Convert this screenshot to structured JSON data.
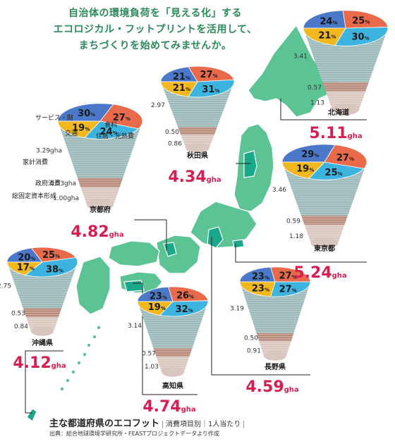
{
  "headline": [
    "自治体の環境負荷を「見える化」する",
    "エコロジカル・フットプリントを活用して、",
    "まちづくりを始めてみませんか。"
  ],
  "colors": {
    "service": "#4b78c8",
    "food": "#e86a4a",
    "transport": "#f2b81e",
    "housing": "#3db4e0",
    "household_band": "#9ab8b8",
    "government_band": "#b88a7a",
    "capital_band": "#d9c6bf",
    "map_green": "#5cc394",
    "map_highlight": "#1aa88a",
    "total_red": "#d81e50"
  },
  "legend": {
    "service": "サービス・財",
    "food": "食料",
    "transport": "交通",
    "housing": "住居・光熱費",
    "household": "家計消費",
    "government": "政府消費",
    "capital": "総固定資本形成"
  },
  "units": {
    "percent": "%",
    "gha": "gha"
  },
  "footer": {
    "title": "主な都道府県のエコフット",
    "subtitle": "消費項目別｜1人当たり",
    "source": "出典：総合地球環境学研究所・FEASTプロジェクトデータより作成"
  },
  "chart_data": {
    "type": "pie",
    "title": "主な都道府県のエコフット",
    "series_order": [
      "service",
      "food",
      "transport",
      "housing"
    ],
    "prefectures": [
      {
        "name": "北海道",
        "total": "5.11",
        "shares": {
          "service": 24,
          "food": 25,
          "transport": 21,
          "housing": 30
        },
        "household": "3.41",
        "government": "0.57",
        "capital": "1.13"
      },
      {
        "name": "秋田県",
        "total": "4.34",
        "shares": {
          "service": 21,
          "food": 27,
          "transport": 21,
          "housing": 31
        },
        "household": "2.97",
        "government": "0.50",
        "capital": "0.86"
      },
      {
        "name": "京都府",
        "total": "4.82",
        "shares": {
          "service": 30,
          "food": 27,
          "transport": 19,
          "housing": 24
        },
        "household": "3.29gha",
        "government": "0.53gha",
        "capital": "1.00gha"
      },
      {
        "name": "東京都",
        "total": "5.24",
        "shares": {
          "service": 29,
          "food": 27,
          "transport": 19,
          "housing": 25
        },
        "household": "3.46",
        "government": "0.59",
        "capital": "1.18"
      },
      {
        "name": "沖縄県",
        "total": "4.12",
        "shares": {
          "service": 20,
          "food": 25,
          "transport": 17,
          "housing": 38
        },
        "household": "2.75",
        "government": "0.53",
        "capital": "0.84"
      },
      {
        "name": "高知県",
        "total": "4.74",
        "shares": {
          "service": 23,
          "food": 26,
          "transport": 19,
          "housing": 32
        },
        "household": "3.14",
        "government": "0.57",
        "capital": "1.03"
      },
      {
        "name": "長野県",
        "total": "4.59",
        "shares": {
          "service": 23,
          "food": 27,
          "transport": 23,
          "housing": 27
        },
        "household": "3.19",
        "government": "0.50",
        "capital": "0.91"
      }
    ]
  }
}
